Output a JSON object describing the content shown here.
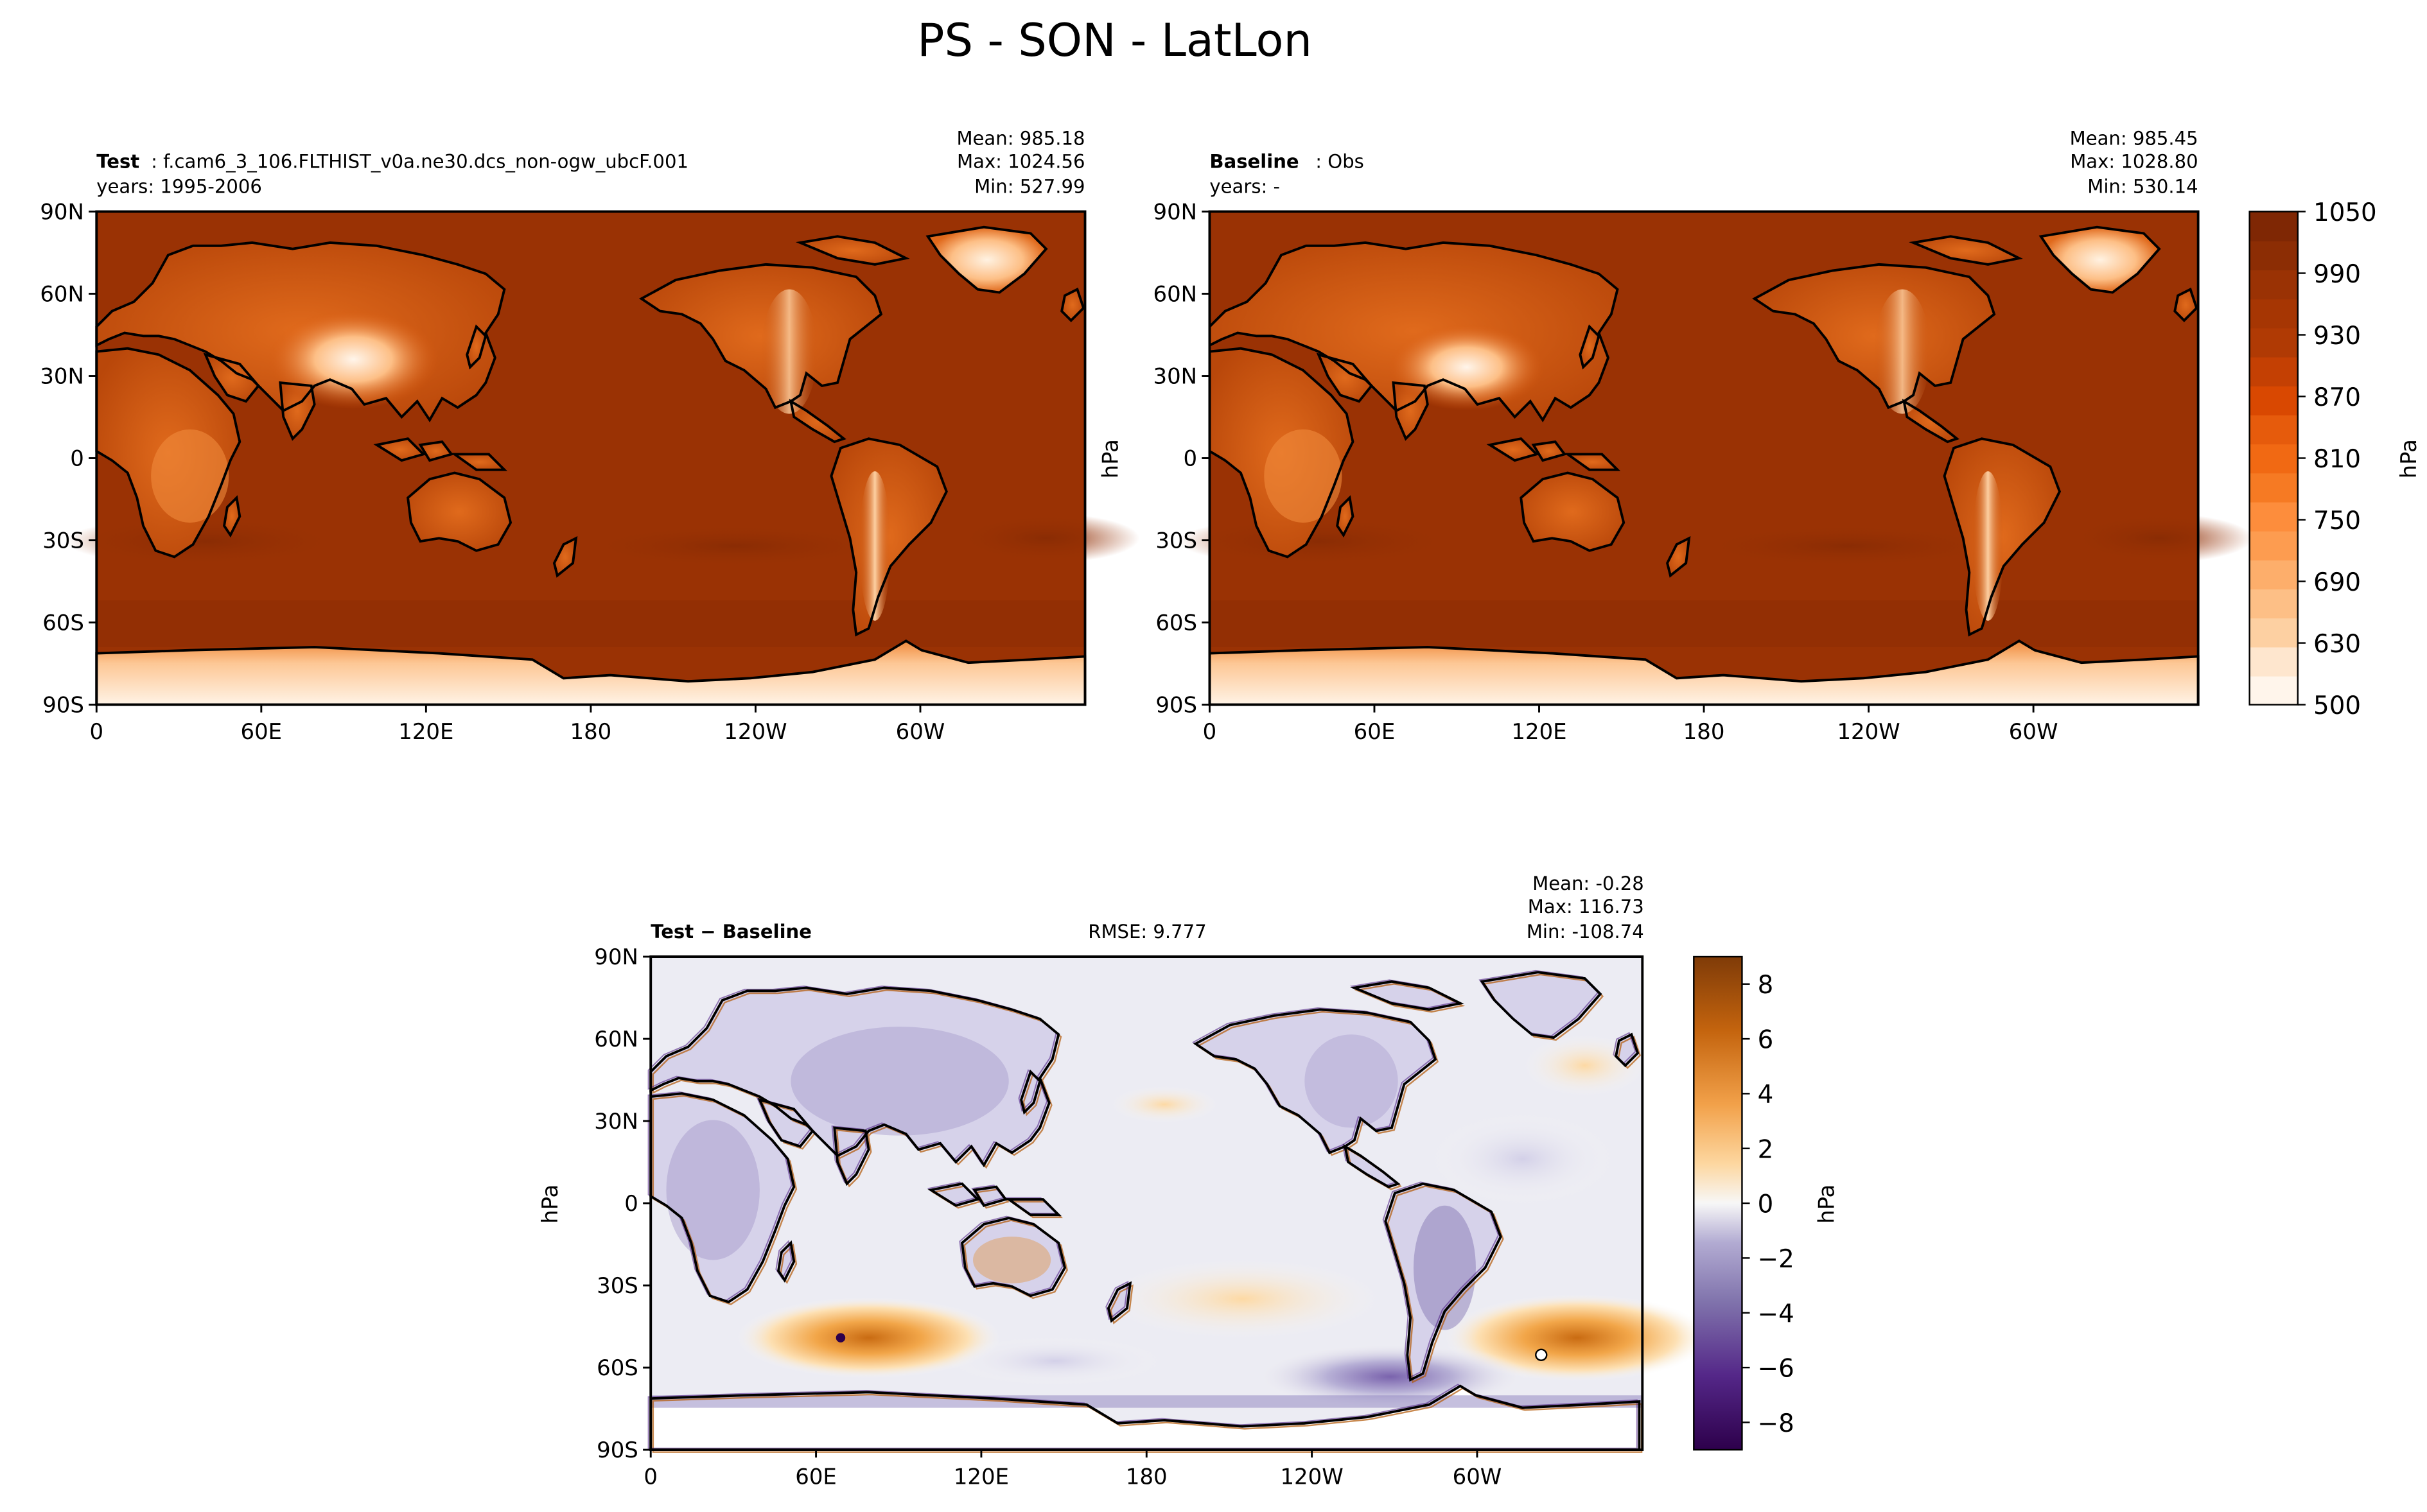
{
  "title": "PS - SON - LatLon",
  "panels": {
    "test": {
      "label_bold": "Test",
      "label_rest": ": f.cam6_3_106.FLTHIST_v0a.ne30.dcs_non-ogw_ubcF.001",
      "years": "years: 1995-2006",
      "mean": "Mean: 985.18",
      "max": "Max: 1024.56",
      "min": "Min: 527.99"
    },
    "baseline": {
      "label_bold": "Baseline",
      "label_rest": ": Obs",
      "years": "years: -",
      "mean": "Mean: 985.45",
      "max": "Max: 1028.80",
      "min": "Min: 530.14",
      "ylabel": "hPa"
    },
    "diff": {
      "label_bold": "Test − Baseline",
      "rmse": "RMSE: 9.777",
      "mean": "Mean: -0.28",
      "max": "Max: 116.73",
      "min": "Min: -108.74",
      "ylabel": "hPa"
    }
  },
  "colorbars": {
    "abs": {
      "label": "hPa",
      "ticks": [
        "1050",
        "990",
        "930",
        "870",
        "810",
        "750",
        "690",
        "630",
        "500"
      ]
    },
    "diff": {
      "label": "hPa",
      "ticks": [
        "8",
        "6",
        "4",
        "2",
        "0",
        "−2",
        "−4",
        "−6",
        "−8"
      ]
    }
  },
  "axes": {
    "lat_ticks": [
      "90N",
      "60N",
      "30N",
      "0",
      "30S",
      "60S",
      "90S"
    ],
    "lon_ticks": [
      "0",
      "60E",
      "120E",
      "180",
      "120W",
      "60W"
    ]
  },
  "colors": {
    "abs_levels": [
      "#fff5eb",
      "#fee6ce",
      "#fdd0a2",
      "#fdbf86",
      "#fdae6b",
      "#fd9c50",
      "#fd8d3c",
      "#f67a23",
      "#f16913",
      "#e65b0c",
      "#d94801",
      "#c44003",
      "#b03a04",
      "#a63603",
      "#9a3204",
      "#8c2d04",
      "#7f2704"
    ],
    "diff_pos": "#b35806",
    "diff_neg": "#542788",
    "diff_zero": "#f7f7f7"
  },
  "chart_data": [
    {
      "type": "heatmap",
      "name": "Test",
      "projection": "PlateCarree, central_longitude=180",
      "xlim": [
        0,
        360
      ],
      "ylim": [
        -90,
        90
      ],
      "units": "hPa",
      "stats": {
        "mean": 985.18,
        "max": 1024.56,
        "min": 527.99
      },
      "colorbar_range": [
        500,
        1050
      ]
    },
    {
      "type": "heatmap",
      "name": "Baseline",
      "projection": "PlateCarree, central_longitude=180",
      "xlim": [
        0,
        360
      ],
      "ylim": [
        -90,
        90
      ],
      "units": "hPa",
      "stats": {
        "mean": 985.45,
        "max": 1028.8,
        "min": 530.14
      },
      "colorbar_range": [
        500,
        1050
      ]
    },
    {
      "type": "heatmap",
      "name": "Test - Baseline",
      "projection": "PlateCarree, central_longitude=180",
      "xlim": [
        0,
        360
      ],
      "ylim": [
        -90,
        90
      ],
      "units": "hPa",
      "stats": {
        "mean": -0.28,
        "max": 116.73,
        "min": -108.74,
        "rmse": 9.777
      },
      "colorbar_range": [
        -9,
        9
      ]
    }
  ]
}
